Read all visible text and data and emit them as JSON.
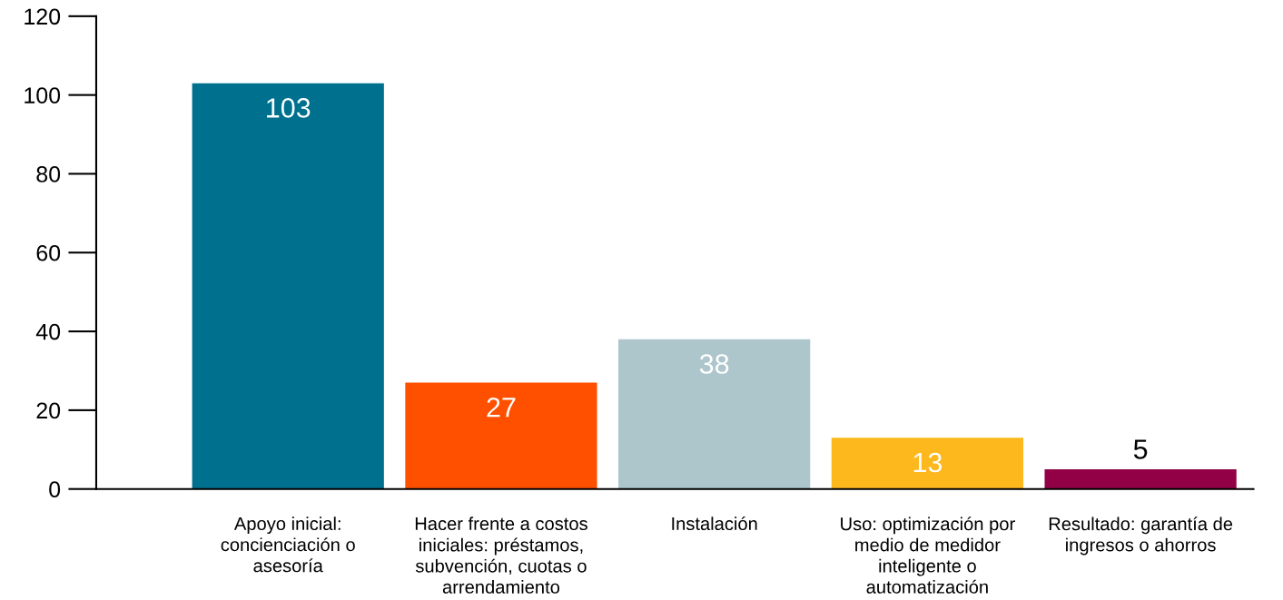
{
  "chart_data": {
    "type": "bar",
    "categories": [
      "Apoyo inicial: concienciación o asesoría",
      "Hacer frente a costos iniciales: préstamos, subvención, cuotas o arrendamiento",
      "Instalación",
      "Uso: optimización por medio de medidor inteligente o automatización",
      "Resultado: garantía de ingresos o ahorros"
    ],
    "values": [
      103,
      27,
      38,
      13,
      5
    ],
    "colors": [
      "#00708f",
      "#ff5000",
      "#adc6cc",
      "#fdb81e",
      "#920045"
    ],
    "ylim": [
      0,
      120
    ],
    "yticks": [
      0,
      20,
      40,
      60,
      80,
      100,
      120
    ],
    "data_labels": true,
    "grid": false,
    "legend": false
  }
}
